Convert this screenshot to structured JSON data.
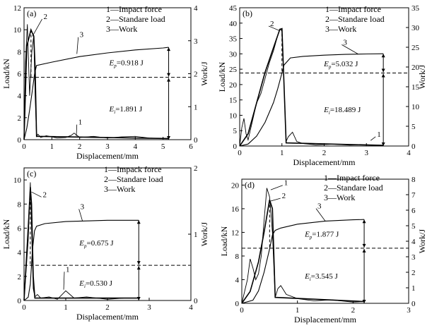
{
  "chart_data": [
    {
      "type": "line",
      "panel_label": "(a)",
      "xlabel": "Displacement/mm",
      "ylabel": "Load/kN",
      "y2label": "Work/J",
      "xlim": [
        0,
        6
      ],
      "ylim": [
        0,
        12
      ],
      "y2lim": [
        0,
        4
      ],
      "xticks": [
        "0",
        "1",
        "2",
        "3",
        "4",
        "5",
        "6"
      ],
      "yticks": [
        "0",
        "2",
        "4",
        "6",
        "8",
        "10",
        "12"
      ],
      "y2ticks": [
        "0",
        "1",
        "2",
        "3",
        "4"
      ],
      "legend": [
        "1—Impact force",
        "2—Standare load",
        "3—Work"
      ],
      "ep_label": "0.918 J",
      "ei_label": "1.891 J",
      "curve_labels": [
        "1",
        "2",
        "3"
      ],
      "series": [
        {
          "name": "1—Impact force",
          "x": [
            0,
            0.05,
            0.12,
            0.2,
            0.28,
            0.35,
            0.4,
            0.45,
            0.5,
            0.6,
            0.8,
            1.2,
            1.5,
            1.7,
            1.8,
            2.0,
            2.5,
            3.0,
            3.5,
            4.0,
            4.5,
            5.0,
            5.2
          ],
          "y": [
            0,
            7,
            10.5,
            4,
            8,
            9.5,
            4,
            0.3,
            0.5,
            0.2,
            0.35,
            0.15,
            0.2,
            0.4,
            0.6,
            0.2,
            0.3,
            0.15,
            0.25,
            0.3,
            0.15,
            0.1,
            0.1
          ]
        },
        {
          "name": "2—Standare load",
          "x": [
            0,
            0.1,
            0.25,
            0.35,
            0.4,
            0.45,
            5.2
          ],
          "y": [
            0,
            8.5,
            10,
            9.4,
            6.5,
            0.3,
            0.1
          ]
        },
        {
          "name": "3—Work",
          "axis": "y2",
          "x": [
            0,
            0.1,
            0.2,
            0.3,
            0.38,
            0.45,
            1,
            2,
            3,
            4,
            5,
            5.2
          ],
          "y": [
            0,
            0.35,
            0.9,
            1.5,
            2.0,
            2.25,
            2.35,
            2.52,
            2.63,
            2.72,
            2.78,
            2.8
          ]
        }
      ],
      "dashed_y2": 1.89
    },
    {
      "type": "line",
      "panel_label": "(b)",
      "xlabel": "Displacement/mm",
      "ylabel": "Load/kN",
      "y2label": "Work/J",
      "xlim": [
        0,
        4
      ],
      "ylim": [
        0,
        45
      ],
      "y2lim": [
        0,
        35
      ],
      "xticks": [
        "0",
        "1",
        "2",
        "3",
        "4"
      ],
      "yticks": [
        "0",
        "5",
        "10",
        "15",
        "20",
        "25",
        "30",
        "35",
        "40",
        "45"
      ],
      "y2ticks": [
        "0",
        "5",
        "10",
        "15",
        "20",
        "25",
        "30",
        "35"
      ],
      "legend": [
        "1—Impact force",
        "2—Standare load",
        "3—Work"
      ],
      "ep_label": "5.032 J",
      "ei_label": "18.489 J",
      "curve_labels": [
        "1",
        "2",
        "3"
      ],
      "series": [
        {
          "name": "1—Impact force",
          "x": [
            0,
            0.05,
            0.1,
            0.15,
            0.2,
            0.3,
            0.4,
            0.5,
            0.6,
            0.7,
            0.8,
            0.9,
            0.95,
            1.0,
            1.05,
            1.1,
            1.15,
            1.25,
            1.35,
            1.5,
            1.8,
            2.2,
            2.6,
            3.0,
            3.4
          ],
          "y": [
            0,
            6,
            9,
            4,
            2,
            8,
            14,
            17,
            22,
            27,
            31,
            36,
            38,
            37.5,
            20,
            1.5,
            3,
            4.5,
            1.5,
            0.8,
            0.4,
            0.6,
            0.3,
            0.4,
            0.2
          ]
        },
        {
          "name": "2—Standare load",
          "x": [
            0,
            0.2,
            0.4,
            0.6,
            0.8,
            0.9,
            0.95,
            1.0,
            1.05,
            1.1,
            3.4
          ],
          "y": [
            0,
            4,
            14,
            24,
            32,
            36,
            38,
            38.2,
            20,
            1,
            0.2
          ]
        },
        {
          "name": "3—Work",
          "axis": "y2",
          "x": [
            0,
            0.2,
            0.4,
            0.6,
            0.8,
            0.9,
            1.0,
            1.05,
            1.2,
            1.5,
            2.0,
            2.5,
            3.0,
            3.4
          ],
          "y": [
            0,
            0.5,
            2.5,
            6,
            11,
            14.5,
            18.5,
            20.5,
            22.3,
            22.7,
            23.0,
            23.2,
            23.3,
            23.35
          ]
        }
      ],
      "dashed_y2": 18.49
    },
    {
      "type": "line",
      "panel_label": "(c)",
      "xlabel": "Displacement/mm",
      "ylabel": "Load/kN",
      "y2label": "Work/J",
      "xlim": [
        0,
        4
      ],
      "ylim": [
        0,
        11
      ],
      "y2lim": [
        0,
        2
      ],
      "xticks": [
        "0",
        "1",
        "2",
        "3",
        "4"
      ],
      "yticks": [
        "0",
        "2",
        "4",
        "6",
        "8",
        "10"
      ],
      "y2ticks": [
        "0",
        "1",
        "2"
      ],
      "legend": [
        "1—Impack force",
        "2—Standare load",
        "3—Work"
      ],
      "ep_label": "0.675 J",
      "ei_label": "0.530 J",
      "curve_labels": [
        "1",
        "2",
        "3"
      ],
      "series": [
        {
          "name": "1—Impack force",
          "x": [
            0,
            0.1,
            0.15,
            0.18,
            0.22,
            0.26,
            0.32,
            0.4,
            0.6,
            0.8,
            1.0,
            1.2,
            1.5,
            2.0,
            2.4,
            2.75
          ],
          "y": [
            0,
            5,
            9.8,
            6,
            1,
            0.3,
            0.5,
            0.2,
            0.3,
            0.1,
            0.8,
            0.2,
            0.3,
            0.1,
            0.2,
            0.2
          ]
        },
        {
          "name": "2—Standare load",
          "x": [
            0,
            0.1,
            0.15,
            0.18,
            0.22,
            0.26,
            2.75
          ],
          "y": [
            0,
            6,
            9.4,
            8,
            2,
            0.2,
            0.2
          ]
        },
        {
          "name": "3—Work",
          "axis": "y2",
          "x": [
            0,
            0.1,
            0.15,
            0.2,
            0.25,
            0.3,
            0.5,
            1,
            1.5,
            2,
            2.5,
            2.75
          ],
          "y": [
            0,
            0.05,
            0.25,
            0.75,
            1.05,
            1.12,
            1.16,
            1.19,
            1.2,
            1.21,
            1.21,
            1.21
          ]
        }
      ],
      "dashed_y2": 0.53
    },
    {
      "type": "line",
      "panel_label": "(d)",
      "xlabel": "Displacement/mm",
      "ylabel": "Load/kN",
      "y2label": "Work/J",
      "xlim": [
        0,
        3
      ],
      "ylim": [
        0,
        21
      ],
      "y2lim": [
        0,
        8
      ],
      "xticks": [
        "0",
        "1",
        "2",
        "3"
      ],
      "yticks": [
        "0",
        "4",
        "8",
        "12",
        "16",
        "20"
      ],
      "y2ticks": [
        "0",
        "1",
        "2",
        "3",
        "4",
        "5",
        "6",
        "7",
        "8"
      ],
      "legend": [
        "1—Impact force",
        "2—Standare load",
        "3—Work"
      ],
      "ep_label": "1.877 J",
      "ei_label": "3.545 J",
      "curve_labels": [
        "1",
        "2",
        "3"
      ],
      "series": [
        {
          "name": "1—Impact force",
          "x": [
            0,
            0.1,
            0.15,
            0.2,
            0.25,
            0.3,
            0.35,
            0.4,
            0.45,
            0.5,
            0.55,
            0.6,
            0.65,
            0.7,
            0.8,
            1.0,
            1.3,
            1.6,
            2.0,
            2.2
          ],
          "y": [
            0,
            4,
            7.5,
            6,
            4,
            5,
            8,
            14,
            19.5,
            18,
            12,
            1,
            2.5,
            3,
            1.5,
            0.8,
            0.4,
            0.6,
            0.2,
            0.3
          ]
        },
        {
          "name": "2—Standare load",
          "x": [
            0,
            0.15,
            0.3,
            0.4,
            0.5,
            0.55,
            0.6,
            2.2
          ],
          "y": [
            0,
            2,
            7,
            12,
            17.5,
            16,
            1,
            0.3
          ]
        },
        {
          "name": "3—Work",
          "axis": "y2",
          "x": [
            0,
            0.2,
            0.3,
            0.4,
            0.5,
            0.55,
            0.6,
            0.7,
            1.0,
            1.5,
            2.0,
            2.2
          ],
          "y": [
            0,
            0.2,
            0.8,
            2,
            3.5,
            4.4,
            4.7,
            4.85,
            5.1,
            5.3,
            5.38,
            5.4
          ]
        }
      ],
      "dashed_y2": 3.55
    }
  ]
}
